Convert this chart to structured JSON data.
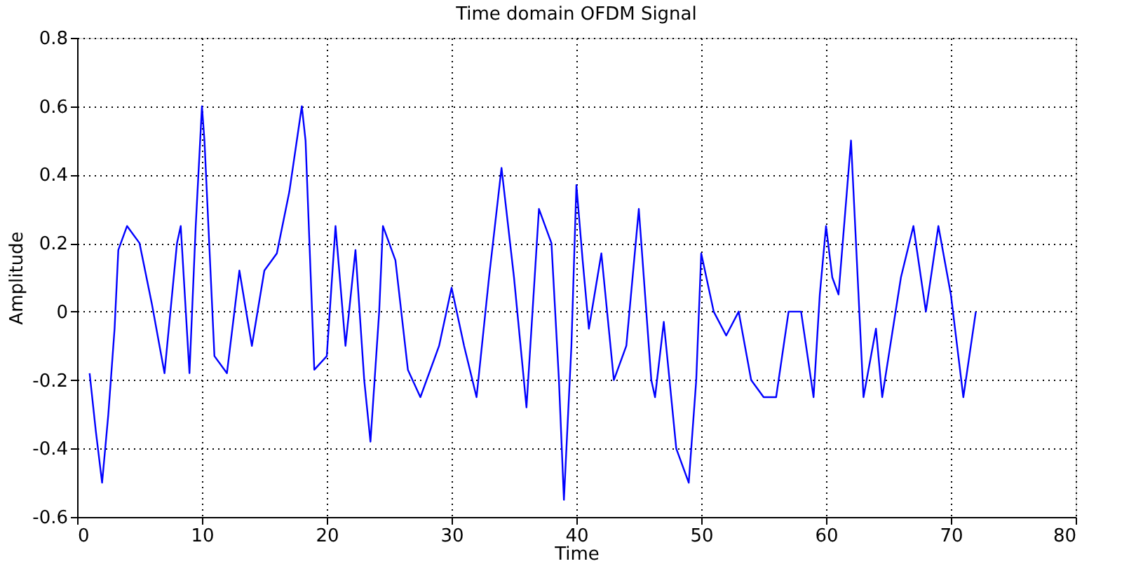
{
  "chart_data": {
    "type": "line",
    "title": "Time domain OFDM Signal",
    "xlabel": "Time",
    "ylabel": "Amplitude",
    "x": [
      1,
      1.5,
      2,
      2.5,
      3,
      3.3,
      4,
      5,
      6,
      7,
      8,
      8.3,
      9,
      9.5,
      10,
      10.2,
      11,
      12,
      13,
      14,
      15,
      16,
      17,
      18,
      18.3,
      19,
      20,
      20.7,
      21.5,
      22.3,
      23,
      23.5,
      24.2,
      24.5,
      25.5,
      26.5,
      27.5,
      29,
      30,
      31,
      32,
      33,
      34,
      35,
      36,
      37,
      38,
      38.6,
      39,
      39.6,
      40,
      40.5,
      41,
      42,
      43,
      44,
      45,
      45.2,
      46,
      46.3,
      47,
      48,
      49,
      49.6,
      50,
      51,
      52,
      53,
      54,
      55,
      56,
      57,
      58,
      59,
      59.5,
      60,
      60.5,
      61,
      62,
      63,
      64,
      64.5,
      66,
      67,
      68,
      69,
      70,
      71,
      72
    ],
    "series": [
      {
        "color": "#0000ff",
        "values": [
          -0.18,
          -0.35,
          -0.5,
          -0.3,
          -0.05,
          0.18,
          0.25,
          0.2,
          0.02,
          -0.18,
          0.2,
          0.25,
          -0.18,
          0.25,
          0.6,
          0.5,
          -0.13,
          -0.18,
          0.12,
          -0.1,
          0.12,
          0.17,
          0.35,
          0.6,
          0.5,
          -0.17,
          -0.13,
          0.25,
          -0.1,
          0.18,
          -0.2,
          -0.38,
          0,
          0.25,
          0.15,
          -0.17,
          -0.25,
          -0.1,
          0.07,
          -0.1,
          -0.25,
          0.1,
          0.42,
          0.1,
          -0.28,
          0.3,
          0.2,
          -0.2,
          -0.55,
          -0.1,
          0.37,
          0.15,
          -0.05,
          0.17,
          -0.2,
          -0.1,
          0.3,
          0.2,
          -0.2,
          -0.25,
          -0.03,
          -0.4,
          -0.5,
          -0.2,
          0.17,
          0,
          -0.07,
          0,
          -0.2,
          -0.25,
          -0.25,
          0,
          0,
          -0.25,
          0.05,
          0.25,
          0.1,
          0.05,
          0.5,
          -0.25,
          -0.05,
          -0.25,
          0.1,
          0.25,
          0,
          0.25,
          0.05,
          -0.25,
          0
        ]
      }
    ],
    "xlim": [
      0,
      80
    ],
    "xticks": [
      0,
      10,
      20,
      30,
      40,
      50,
      60,
      70,
      80
    ],
    "ylim": [
      -0.6,
      0.8
    ],
    "yticks": [
      -0.6,
      -0.4,
      -0.2,
      0,
      0.2,
      0.4,
      0.6,
      0.8
    ],
    "grid": true,
    "line_style": "solid",
    "marker": "none"
  }
}
